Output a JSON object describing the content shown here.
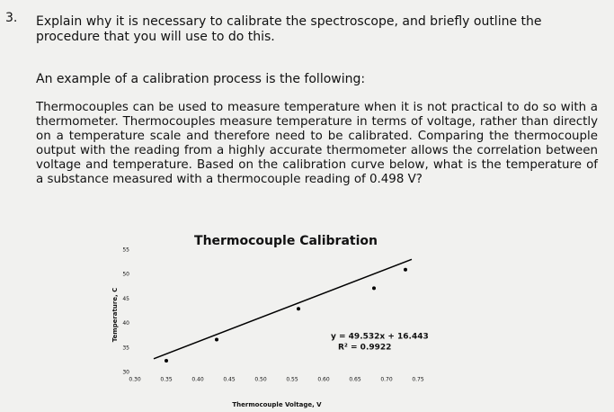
{
  "question": {
    "number": "3.",
    "text": "Explain why it is necessary to calibrate the spectroscope, and briefly outline the procedure that you will use to do this.",
    "example_intro": "An example of a calibration process is the following:",
    "paragraph": "Thermocouples can be used to measure temperature when it is not practical to do so with a thermometer. Thermocouples measure temperature in terms of voltage, rather than directly on a temperature scale and therefore need to be calibrated. Comparing the thermocouple output with the reading from a highly accurate thermometer allows the correlation between voltage and temperature. Based on the calibration curve below, what is the temperature of a substance measured with a thermocouple reading of 0.498 V?"
  },
  "chart_data": {
    "type": "scatter",
    "title": "Thermocouple Calibration",
    "x_label": "Thermocouple Voltage, V",
    "y_label": "Temperature, C",
    "series": [
      {
        "color": "#000000",
        "x": [
          0.35,
          0.43,
          0.56,
          0.68,
          0.73
        ],
        "y": [
          32.4,
          36.7,
          43,
          47.2,
          51
        ]
      }
    ],
    "trendline": {
      "color": "#000000",
      "x": [
        0.33,
        0.74
      ],
      "y": [
        32.8,
        53.1
      ]
    },
    "annotations": [
      "y = 49.532x + 16.443",
      "R² = 0.9922"
    ],
    "xlim": [
      0.3,
      0.75
    ],
    "xticks": [
      {
        "value": 0.3,
        "label": "0.30"
      },
      0.35,
      {
        "value": 0.4,
        "label": "0.40"
      },
      0.45,
      {
        "value": 0.5,
        "label": "0.50"
      },
      0.55,
      {
        "value": 0.6,
        "label": "0.60"
      },
      0.65,
      {
        "value": 0.7,
        "label": "0.70"
      },
      0.75
    ],
    "ylim": [
      30,
      55
    ],
    "yticks": [
      30,
      35,
      40,
      45,
      50,
      55
    ],
    "grid": false
  }
}
